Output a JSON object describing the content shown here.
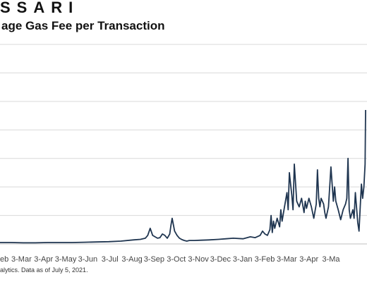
{
  "brand": "SSARI",
  "title": "age Gas Fee per Transaction",
  "footnote": "alytics. Data as of July 5, 2021.",
  "colors": {
    "line": "#1f3550",
    "grid": "#d9d9d9",
    "axis": "#bfbfbf",
    "text": "#444444"
  },
  "chart_data": {
    "type": "line",
    "title": "age Gas Fee per Transaction",
    "xlabel": "",
    "ylabel": "",
    "grid": true,
    "legend": "none",
    "x_tick_labels": [
      "eb",
      "3-Mar",
      "3-Apr",
      "3-May",
      "3-Jun",
      "3-Jul",
      "3-Aug",
      "3-Sep",
      "3-Oct",
      "3-Nov",
      "3-Dec",
      "3-Jan",
      "3-Feb",
      "3-Mar",
      "3-Apr",
      "3-Ma"
    ],
    "gridline_count": 7,
    "ylim": [
      0,
      7
    ],
    "x_range": [
      0.05,
      15.02
    ],
    "series": [
      {
        "x": [
          0.05,
          0.5,
          1,
          1.5,
          2,
          2.5,
          3,
          3.5,
          4,
          4.5,
          5,
          5.5,
          5.8,
          6,
          6.1,
          6.2,
          6.3,
          6.4,
          6.5,
          6.6,
          6.7,
          6.8,
          6.9,
          7,
          7.05,
          7.1,
          7.2,
          7.3,
          7.4,
          7.5,
          7.6,
          7.7,
          7.8,
          8,
          8.3,
          8.6,
          9,
          9.3,
          9.6,
          10,
          10.3,
          10.5,
          10.7,
          10.8,
          10.9,
          11,
          11.1,
          11.15,
          11.2,
          11.25,
          11.3,
          11.4,
          11.5,
          11.55,
          11.6,
          11.7,
          11.8,
          11.85,
          11.9,
          12,
          12.05,
          12.1,
          12.2,
          12.3,
          12.4,
          12.5,
          12.55,
          12.6,
          12.7,
          12.8,
          12.85,
          12.9,
          13,
          13.05,
          13.1,
          13.15,
          13.2,
          13.3,
          13.35,
          13.4,
          13.5,
          13.6,
          13.7,
          13.75,
          13.8,
          13.9,
          14,
          14.1,
          14.2,
          14.25,
          14.3,
          14.35,
          14.4,
          14.5,
          14.55,
          14.6,
          14.7,
          14.75,
          14.8,
          14.85,
          14.9,
          14.95,
          15.0,
          15.02
        ],
        "y": [
          0.05,
          0.05,
          0.04,
          0.04,
          0.05,
          0.05,
          0.05,
          0.06,
          0.07,
          0.08,
          0.1,
          0.14,
          0.16,
          0.2,
          0.3,
          0.55,
          0.3,
          0.25,
          0.2,
          0.22,
          0.35,
          0.3,
          0.2,
          0.35,
          0.65,
          0.9,
          0.45,
          0.3,
          0.2,
          0.15,
          0.12,
          0.1,
          0.12,
          0.12,
          0.13,
          0.14,
          0.16,
          0.18,
          0.2,
          0.18,
          0.25,
          0.22,
          0.3,
          0.45,
          0.35,
          0.3,
          0.5,
          1.0,
          0.4,
          0.8,
          0.55,
          0.9,
          0.6,
          1.2,
          0.8,
          1.3,
          1.8,
          1.2,
          2.5,
          1.7,
          1.2,
          2.8,
          1.5,
          1.3,
          1.6,
          1.1,
          1.5,
          1.25,
          1.6,
          1.3,
          1.1,
          0.9,
          1.4,
          2.6,
          1.6,
          1.3,
          1.6,
          1.4,
          1.1,
          0.9,
          1.3,
          2.7,
          1.5,
          2.0,
          1.5,
          1.2,
          0.85,
          1.2,
          1.4,
          1.6,
          3.0,
          1.2,
          0.9,
          1.2,
          0.9,
          1.8,
          0.75,
          0.45,
          1.3,
          2.1,
          1.6,
          2.0,
          2.8,
          4.7
        ]
      }
    ]
  }
}
